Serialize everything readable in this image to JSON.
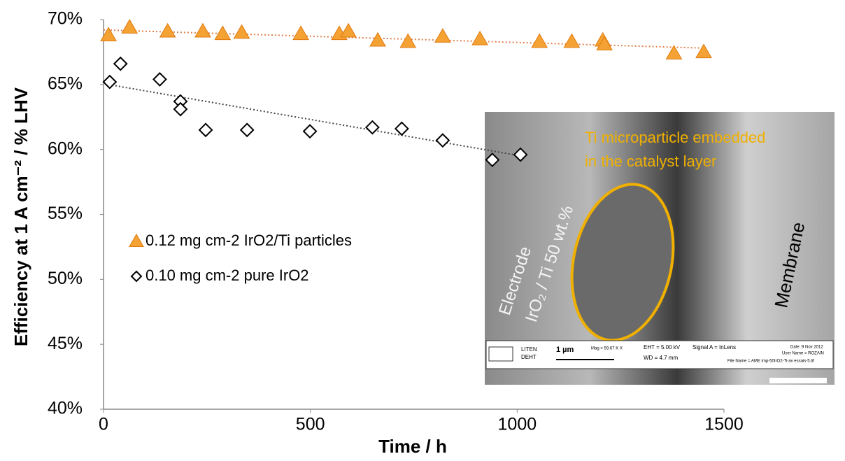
{
  "chart_data": {
    "type": "scatter",
    "xlabel": "Time / h",
    "ylabel": "Efficiency at 1 A cm⁻² / % LHV",
    "xlim": [
      0,
      1500
    ],
    "xticks": [
      0,
      500,
      1000,
      1500
    ],
    "ylim": [
      40,
      70
    ],
    "yticks": [
      {
        "value": 40,
        "label": "40%"
      },
      {
        "value": 45,
        "label": "45%"
      },
      {
        "value": 50,
        "label": "50%"
      },
      {
        "value": 55,
        "label": "55%"
      },
      {
        "value": 60,
        "label": "60%"
      },
      {
        "value": 65,
        "label": "65%"
      },
      {
        "value": 70,
        "label": "70%"
      }
    ],
    "grid": false,
    "legend": "left",
    "series": [
      {
        "name": "0.12 mg cm-2 IrO2/Ti particles",
        "marker": "triangle",
        "color": "#f4a233",
        "x": [
          12,
          63,
          155,
          240,
          288,
          334,
          477,
          570,
          592,
          663,
          736,
          820,
          910,
          1054,
          1132,
          1207,
          1211,
          1379,
          1451
        ],
        "values": [
          68.8,
          69.4,
          69.1,
          69.1,
          68.9,
          69.0,
          68.9,
          68.9,
          69.1,
          68.4,
          68.3,
          68.7,
          68.5,
          68.3,
          68.3,
          68.4,
          68.1,
          67.4,
          67.5
        ],
        "trendline": {
          "x": [
            0,
            1455
          ],
          "values": [
            69.2,
            67.8
          ]
        }
      },
      {
        "name": "0.10 mg cm-2  pure IrO2",
        "marker": "diamond",
        "color": "#000000",
        "x": [
          15,
          41,
          136,
          186,
          186,
          247,
          347,
          499,
          650,
          721,
          820,
          940,
          1008
        ],
        "values": [
          65.2,
          66.6,
          65.4,
          63.7,
          63.1,
          61.5,
          61.5,
          61.4,
          61.7,
          61.6,
          60.7,
          59.2,
          59.6
        ],
        "trendline": {
          "x": [
            12,
            1010
          ],
          "values": [
            65.0,
            59.5
          ]
        }
      }
    ],
    "annotations": {
      "callout": [
        "Ti microparticle embedded",
        "in the catalyst layer"
      ],
      "electrode": "Electrode",
      "layer": "IrO₂ / Ti 50 wt.%",
      "membrane": "Membrane",
      "meta": [
        "LITEN",
        "DEHT",
        "1 µm",
        "Mag = 59.67 K X",
        "EHT = 5.00 kV",
        "WD = 4.7 mm",
        "Signal A = InLens",
        "Date :9 Nov 2012",
        "User Name = ROZAIN",
        "File Name = AME imp-50IrO2-Ti-av essais-5.tif"
      ]
    }
  }
}
